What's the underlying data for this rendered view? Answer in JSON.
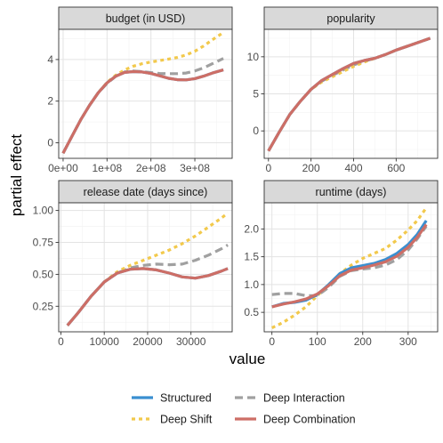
{
  "figure": {
    "xlabel": "value",
    "ylabel": "partial effect"
  },
  "legend": {
    "position": "bottom",
    "items": [
      {
        "label": "Structured",
        "color": "#3a8fd0",
        "dash": "solid"
      },
      {
        "label": "Deep Interaction",
        "color": "#a0a0a0",
        "dash": "dashed"
      },
      {
        "label": "Deep Shift",
        "color": "#f2c94c",
        "dash": "dotted"
      },
      {
        "label": "Deep Combination",
        "color": "#cd6e66",
        "dash": "solid"
      }
    ]
  },
  "chart_data": [
    {
      "type": "line",
      "title": "budget (in USD)",
      "xlim": [
        -10000000.0,
        385000000.0
      ],
      "ylim": [
        -0.75,
        5.45
      ],
      "xticks": [
        0,
        100000000,
        200000000,
        300000000
      ],
      "xtick_labels": [
        "0e+00",
        "1e+08",
        "2e+08",
        "3e+08"
      ],
      "yticks": [
        0,
        2,
        4
      ],
      "ytick_labels": [
        "0",
        "2",
        "4"
      ],
      "grid": true,
      "series": [
        {
          "name": "Deep Interaction",
          "x": [
            0,
            20000000,
            40000000,
            60000000,
            80000000,
            100000000,
            120000000,
            140000000,
            160000000,
            180000000,
            200000000,
            220000000,
            240000000,
            260000000,
            280000000,
            300000000,
            320000000,
            340000000,
            365000000
          ],
          "y": [
            -0.5,
            0.3,
            1.1,
            1.8,
            2.4,
            2.85,
            3.2,
            3.4,
            3.45,
            3.42,
            3.37,
            3.33,
            3.32,
            3.32,
            3.35,
            3.45,
            3.6,
            3.8,
            4.05
          ]
        },
        {
          "name": "Deep Shift",
          "x": [
            0,
            20000000,
            40000000,
            60000000,
            80000000,
            100000000,
            120000000,
            140000000,
            160000000,
            180000000,
            200000000,
            220000000,
            240000000,
            260000000,
            280000000,
            300000000,
            320000000,
            340000000,
            365000000
          ],
          "y": [
            -0.5,
            0.3,
            1.1,
            1.8,
            2.4,
            2.9,
            3.25,
            3.5,
            3.68,
            3.8,
            3.88,
            3.95,
            4.02,
            4.1,
            4.22,
            4.4,
            4.65,
            4.95,
            5.3
          ]
        },
        {
          "name": "Deep Combination",
          "x": [
            0,
            20000000,
            40000000,
            60000000,
            80000000,
            100000000,
            120000000,
            140000000,
            160000000,
            180000000,
            200000000,
            220000000,
            240000000,
            260000000,
            280000000,
            300000000,
            320000000,
            340000000,
            365000000
          ],
          "y": [
            -0.5,
            0.3,
            1.1,
            1.8,
            2.4,
            2.88,
            3.2,
            3.38,
            3.42,
            3.4,
            3.33,
            3.22,
            3.1,
            3.03,
            3.02,
            3.08,
            3.2,
            3.35,
            3.5
          ]
        },
        {
          "name": "Structured",
          "x": [
            0,
            20000000,
            40000000,
            60000000,
            80000000,
            100000000,
            120000000,
            140000000,
            160000000,
            180000000,
            200000000,
            220000000,
            240000000,
            260000000,
            280000000,
            300000000,
            320000000,
            340000000,
            365000000
          ],
          "y": [
            -0.5,
            0.3,
            1.1,
            1.8,
            2.4,
            2.88,
            3.2,
            3.38,
            3.42,
            3.4,
            3.33,
            3.22,
            3.1,
            3.03,
            3.02,
            3.08,
            3.2,
            3.35,
            3.5
          ]
        }
      ]
    },
    {
      "type": "line",
      "title": "popularity",
      "xlim": [
        -20,
        795
      ],
      "ylim": [
        -3.7,
        13.7
      ],
      "xticks": [
        0,
        200,
        400,
        600
      ],
      "xtick_labels": [
        "0",
        "200",
        "400",
        "600"
      ],
      "yticks": [
        0,
        5,
        10
      ],
      "ytick_labels": [
        "0",
        "5",
        "10"
      ],
      "grid": true,
      "series": [
        {
          "name": "Deep Interaction",
          "x": [
            0,
            50,
            100,
            150,
            200,
            250,
            300,
            350,
            400,
            450,
            500,
            550,
            600,
            650,
            700,
            760
          ],
          "y": [
            -2.7,
            -0.2,
            2.2,
            4.0,
            5.6,
            6.7,
            7.5,
            8.2,
            8.9,
            9.4,
            9.8,
            10.3,
            10.9,
            11.4,
            11.9,
            12.5
          ]
        },
        {
          "name": "Deep Shift",
          "x": [
            0,
            50,
            100,
            150,
            200,
            250,
            300,
            350,
            400,
            450,
            500,
            550,
            600,
            650,
            700,
            760
          ],
          "y": [
            -2.7,
            -0.2,
            2.2,
            4.0,
            5.6,
            6.6,
            7.3,
            8.0,
            8.7,
            9.3,
            9.8,
            10.3,
            10.9,
            11.4,
            11.9,
            12.5
          ]
        },
        {
          "name": "Deep Combination",
          "x": [
            0,
            50,
            100,
            150,
            200,
            250,
            300,
            350,
            400,
            450,
            500,
            550,
            600,
            650,
            700,
            760
          ],
          "y": [
            -2.7,
            -0.2,
            2.2,
            4.0,
            5.6,
            6.8,
            7.6,
            8.4,
            9.1,
            9.5,
            9.8,
            10.3,
            10.9,
            11.4,
            11.9,
            12.5
          ]
        },
        {
          "name": "Structured",
          "x": [
            0,
            50,
            100,
            150,
            200,
            250,
            300,
            350,
            400,
            450,
            500,
            550,
            600,
            650,
            700,
            760
          ],
          "y": [
            -2.7,
            -0.2,
            2.2,
            4.0,
            5.6,
            6.8,
            7.6,
            8.4,
            9.1,
            9.5,
            9.8,
            10.3,
            10.9,
            11.4,
            11.9,
            12.5
          ]
        }
      ]
    },
    {
      "type": "line",
      "title": "release date (days since)",
      "xlim": [
        -500,
        39500
      ],
      "ylim": [
        0.05,
        1.06
      ],
      "xticks": [
        0,
        10000,
        20000,
        30000
      ],
      "xtick_labels": [
        "0",
        "10000",
        "20000",
        "30000"
      ],
      "yticks": [
        0.25,
        0.5,
        0.75,
        1.0
      ],
      "ytick_labels": [
        "0.25",
        "0.50",
        "0.75",
        "1.00"
      ],
      "grid": true,
      "series": [
        {
          "name": "Deep Interaction",
          "x": [
            1500,
            4000,
            7000,
            10000,
            13000,
            16000,
            19000,
            22000,
            25000,
            28000,
            31000,
            34000,
            37000,
            38500
          ],
          "y": [
            0.1,
            0.2,
            0.33,
            0.44,
            0.51,
            0.55,
            0.57,
            0.58,
            0.575,
            0.58,
            0.61,
            0.65,
            0.7,
            0.73
          ]
        },
        {
          "name": "Deep Shift",
          "x": [
            1500,
            4000,
            7000,
            10000,
            13000,
            16000,
            19000,
            22000,
            25000,
            28000,
            31000,
            34000,
            37000,
            38500
          ],
          "y": [
            0.1,
            0.2,
            0.33,
            0.44,
            0.52,
            0.57,
            0.61,
            0.65,
            0.69,
            0.74,
            0.8,
            0.87,
            0.94,
            0.98
          ]
        },
        {
          "name": "Deep Combination",
          "x": [
            1500,
            4000,
            7000,
            10000,
            13000,
            16000,
            19000,
            22000,
            25000,
            28000,
            31000,
            34000,
            37000,
            38500
          ],
          "y": [
            0.1,
            0.2,
            0.33,
            0.44,
            0.51,
            0.54,
            0.545,
            0.535,
            0.51,
            0.48,
            0.47,
            0.49,
            0.525,
            0.545
          ]
        },
        {
          "name": "Structured",
          "x": [
            1500,
            4000,
            7000,
            10000,
            13000,
            16000,
            19000,
            22000,
            25000,
            28000,
            31000,
            34000,
            37000,
            38500
          ],
          "y": [
            0.1,
            0.2,
            0.33,
            0.44,
            0.51,
            0.54,
            0.545,
            0.535,
            0.51,
            0.48,
            0.47,
            0.49,
            0.525,
            0.545
          ]
        }
      ]
    },
    {
      "type": "line",
      "title": "runtime (days)",
      "xlim": [
        -17,
        365
      ],
      "ylim": [
        0.15,
        2.47
      ],
      "xticks": [
        0,
        100,
        200,
        300
      ],
      "xtick_labels": [
        "0",
        "100",
        "200",
        "300"
      ],
      "yticks": [
        0.5,
        1.0,
        1.5,
        2.0
      ],
      "ytick_labels": [
        "0.5",
        "1.0",
        "1.5",
        "2.0"
      ],
      "grid": true,
      "series": [
        {
          "name": "Deep Interaction",
          "x": [
            0,
            25,
            50,
            75,
            100,
            125,
            150,
            175,
            200,
            225,
            250,
            275,
            300,
            320,
            340
          ],
          "y": [
            0.82,
            0.84,
            0.84,
            0.8,
            0.8,
            0.95,
            1.15,
            1.25,
            1.28,
            1.3,
            1.35,
            1.45,
            1.62,
            1.82,
            2.05
          ]
        },
        {
          "name": "Deep Shift",
          "x": [
            0,
            25,
            50,
            75,
            100,
            125,
            150,
            175,
            200,
            225,
            250,
            275,
            300,
            320,
            340
          ],
          "y": [
            0.22,
            0.32,
            0.45,
            0.6,
            0.8,
            1.0,
            1.2,
            1.35,
            1.47,
            1.56,
            1.65,
            1.8,
            1.98,
            2.15,
            2.38
          ]
        },
        {
          "name": "Deep Combination",
          "x": [
            0,
            25,
            50,
            75,
            100,
            125,
            150,
            175,
            200,
            225,
            250,
            275,
            300,
            320,
            340
          ],
          "y": [
            0.6,
            0.65,
            0.69,
            0.74,
            0.83,
            0.98,
            1.16,
            1.26,
            1.3,
            1.35,
            1.41,
            1.51,
            1.67,
            1.85,
            2.08
          ]
        },
        {
          "name": "Structured",
          "x": [
            0,
            25,
            50,
            75,
            100,
            125,
            150,
            175,
            200,
            225,
            250,
            275,
            300,
            320,
            340
          ],
          "y": [
            0.6,
            0.66,
            0.68,
            0.72,
            0.82,
            1.0,
            1.2,
            1.3,
            1.34,
            1.38,
            1.45,
            1.56,
            1.72,
            1.9,
            2.15
          ]
        }
      ]
    }
  ]
}
